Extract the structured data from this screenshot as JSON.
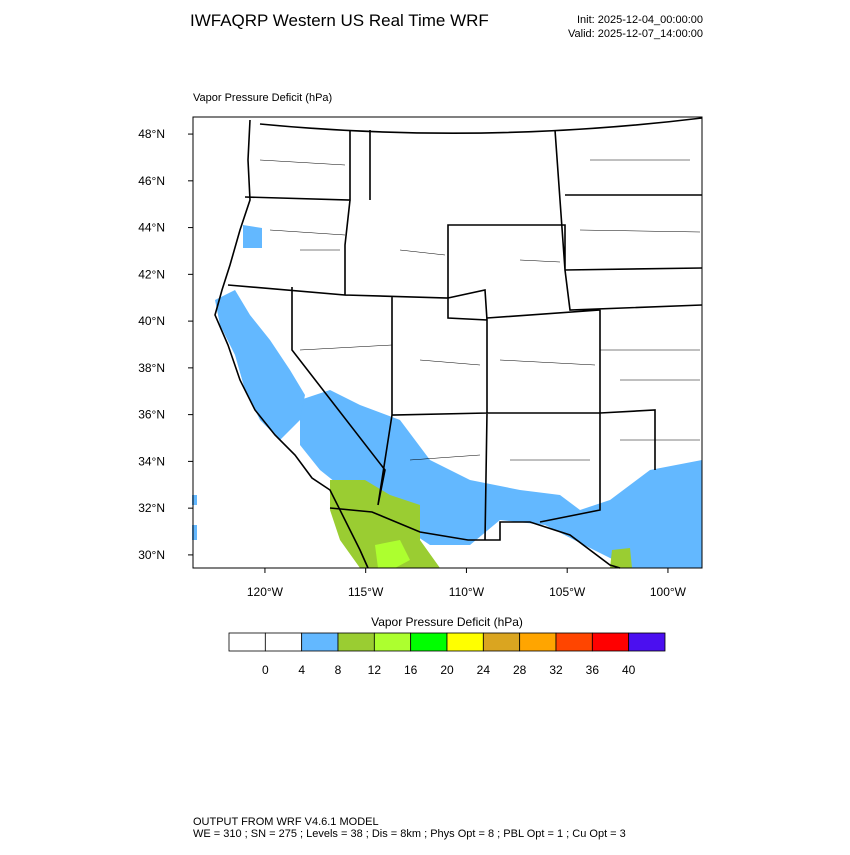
{
  "header": {
    "title": "IWFAQRP Western US Real Time WRF",
    "init": "Init: 2025-12-04_00:00:00",
    "valid": "Valid: 2025-12-07_14:00:00"
  },
  "map": {
    "label": "Vapor Pressure Deficit   (hPa)",
    "xlim": [
      -123.57,
      -98.31
    ],
    "ylim": [
      29.44,
      48.73
    ],
    "xticks": [
      {
        "value": -120,
        "label": "120°W"
      },
      {
        "value": -115,
        "label": "115°W"
      },
      {
        "value": -110,
        "label": "110°W"
      },
      {
        "value": -105,
        "label": "105°W"
      },
      {
        "value": -100,
        "label": "100°W"
      }
    ],
    "yticks": [
      {
        "value": 30,
        "label": "30°N"
      },
      {
        "value": 32,
        "label": "32°N"
      },
      {
        "value": 34,
        "label": "34°N"
      },
      {
        "value": 36,
        "label": "36°N"
      },
      {
        "value": 38,
        "label": "38°N"
      },
      {
        "value": 40,
        "label": "40°N"
      },
      {
        "value": 42,
        "label": "42°N"
      },
      {
        "value": 44,
        "label": "44°N"
      },
      {
        "value": 46,
        "label": "46°N"
      },
      {
        "value": 48,
        "label": "48°N"
      }
    ]
  },
  "colorbar": {
    "title": "Vapor Pressure Deficit  (hPa)",
    "levels": [
      0,
      4,
      8,
      12,
      16,
      20,
      24,
      28,
      32,
      36,
      40
    ],
    "colors": [
      "#ffffff",
      "#ffffff",
      "#63b8ff",
      "#9acd32",
      "#adff2f",
      "#00ff00",
      "#ffff00",
      "#daa520",
      "#ffa500",
      "#ff4500",
      "#ff0000",
      "#4b0ff0"
    ]
  },
  "footer": {
    "line1": "OUTPUT FROM WRF V4.6.1 MODEL",
    "line2": "WE = 310 ; SN = 275 ; Levels = 38 ; Dis = 8km ; Phys Opt = 8 ; PBL Opt = 1 ; Cu Opt = 3"
  }
}
